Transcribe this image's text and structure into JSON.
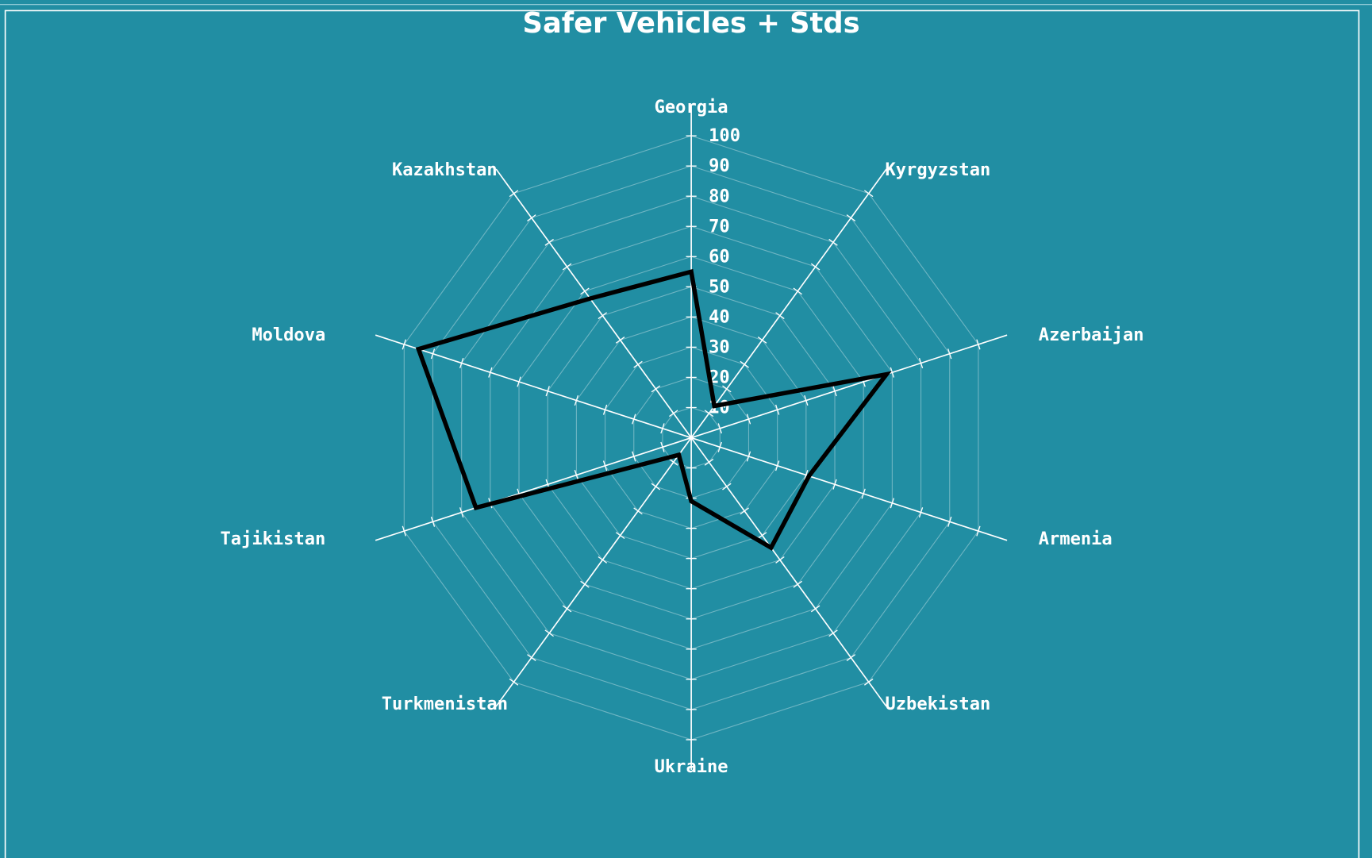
{
  "chart_data": {
    "type": "radar",
    "title": "Safer Vehicles + Stds",
    "categories": [
      "Georgia",
      "Kyrgyzstan",
      "Azerbaijan",
      "Armenia",
      "Uzbekistan",
      "Ukraine",
      "Turkmenistan",
      "Tajikistan",
      "Moldova",
      "Kazakhstan"
    ],
    "values": [
      55,
      13,
      68,
      41,
      45,
      21,
      7,
      75,
      95,
      57
    ],
    "color": "#000000",
    "ylim": [
      0,
      100
    ],
    "yticks": [
      10,
      20,
      30,
      40,
      50,
      60,
      70,
      80,
      90,
      100
    ],
    "grid": true
  }
}
